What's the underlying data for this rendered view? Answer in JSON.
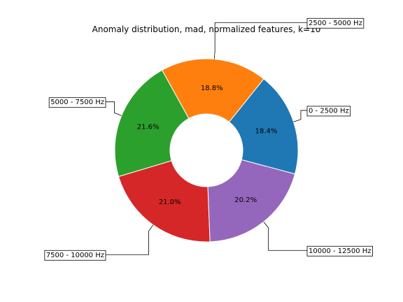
{
  "chart_data": {
    "type": "pie",
    "donut": true,
    "title": "Anomaly distribution, mad, normalized features, k=10",
    "start_angle_deg": -15,
    "direction": "counterclockwise",
    "slices": [
      {
        "label": "0 - 2500 Hz",
        "value": 18.4,
        "pct_label": "18.4%",
        "color": "#1f77b4"
      },
      {
        "label": "2500 - 5000 Hz",
        "value": 18.8,
        "pct_label": "18.8%",
        "color": "#ff7f0e"
      },
      {
        "label": "5000 - 7500 Hz",
        "value": 21.6,
        "pct_label": "21.6%",
        "color": "#2ca02c"
      },
      {
        "label": "7500 - 10000 Hz",
        "value": 21.0,
        "pct_label": "21.0%",
        "color": "#d62728"
      },
      {
        "label": "10000 - 12500 Hz",
        "value": 20.2,
        "pct_label": "20.2%",
        "color": "#9467bd"
      }
    ]
  }
}
